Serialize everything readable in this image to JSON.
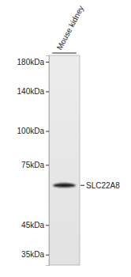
{
  "chart_data": {
    "type": "blot",
    "categories": [
      "Mouse kidney"
    ],
    "values": [
      63
    ],
    "annotation": "SLC22A8",
    "log": "y",
    "ylim": [
      32,
      190
    ],
    "yticks": [
      {
        "value": 180,
        "label": "180kDa"
      },
      {
        "value": 140,
        "label": "140kDa"
      },
      {
        "value": 100,
        "label": "100kDa"
      },
      {
        "value": 75,
        "label": "75kDa"
      },
      {
        "value": 45,
        "label": "45kDa"
      },
      {
        "value": 35,
        "label": "35kDa"
      }
    ],
    "color": "#1a1a1a"
  }
}
